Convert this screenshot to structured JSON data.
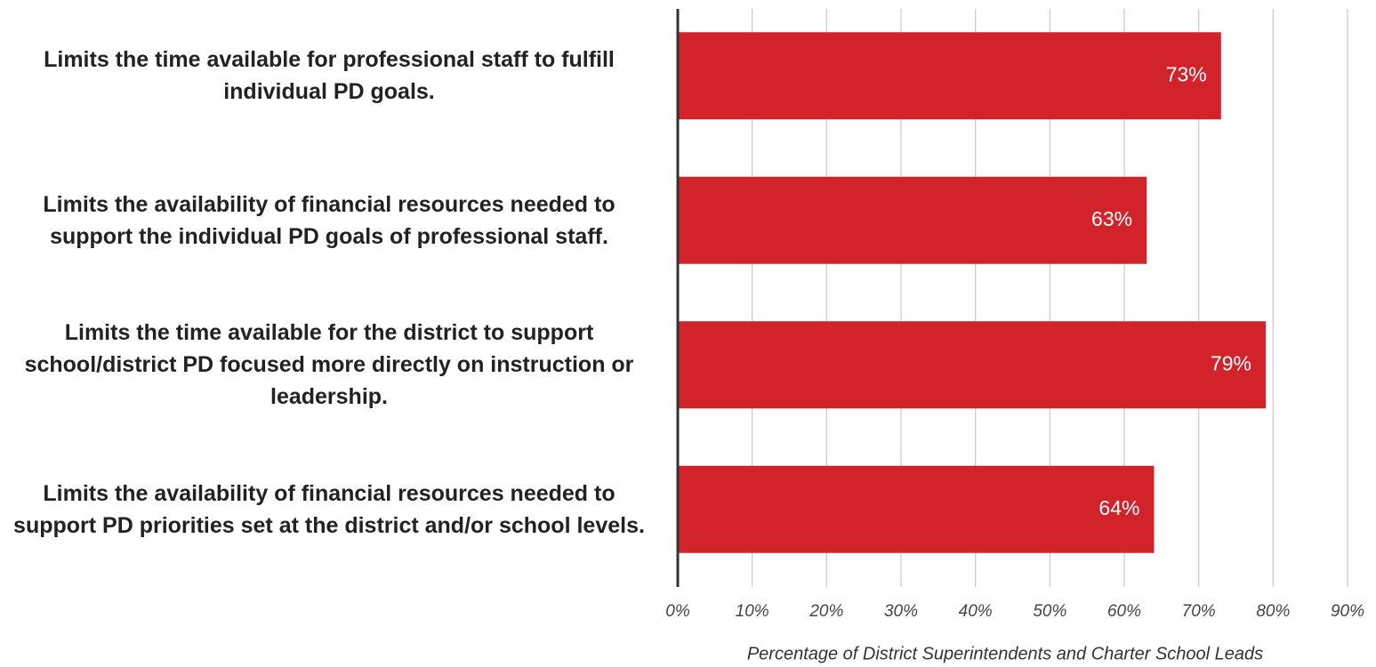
{
  "chart_data": {
    "type": "bar",
    "orientation": "horizontal",
    "categories": [
      "Limits the time available for professional staff to fulfill individual PD goals.",
      "Limits the availability of financial resources needed to support the individual PD goals of professional staff.",
      "Limits the time available for the district to support school/district PD focused more directly on instruction or leadership.",
      "Limits the availability of financial resources needed to support PD priorities set at the district and/or school levels."
    ],
    "values": [
      73,
      63,
      79,
      64
    ],
    "value_labels": [
      "73%",
      "63%",
      "79%",
      "64%"
    ],
    "color": "#d2232a",
    "xlim": [
      0,
      90
    ],
    "xticks": [
      {
        "value": 0,
        "label": "0%"
      },
      {
        "value": 10,
        "label": "10%"
      },
      {
        "value": 20,
        "label": "20%"
      },
      {
        "value": 30,
        "label": "30%"
      },
      {
        "value": 40,
        "label": "40%"
      },
      {
        "value": 50,
        "label": "50%"
      },
      {
        "value": 60,
        "label": "60%"
      },
      {
        "value": 70,
        "label": "70%"
      },
      {
        "value": 80,
        "label": "80%"
      },
      {
        "value": 90,
        "label": "90%"
      }
    ],
    "x_label": "Percentage of District Superintendents and Charter School Leads",
    "grid": true
  }
}
